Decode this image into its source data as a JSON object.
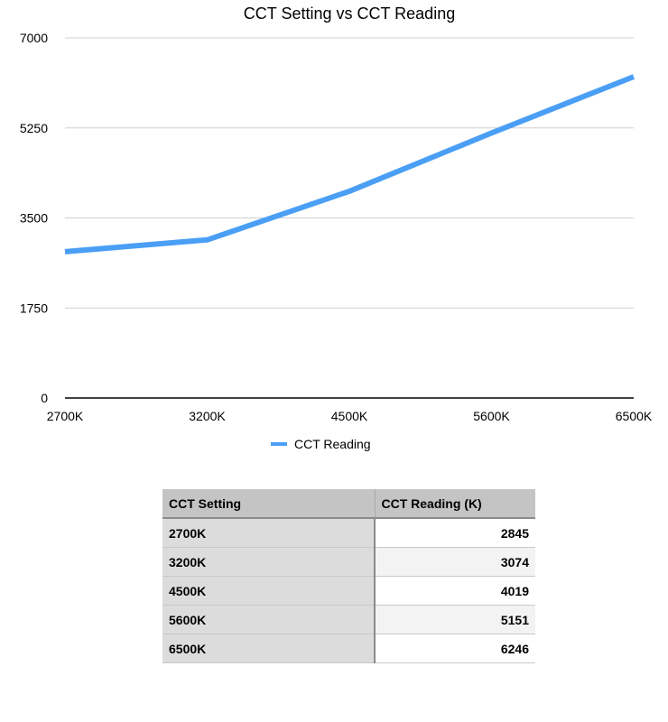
{
  "chart_data": {
    "type": "line",
    "title": "CCT Setting vs CCT Reading",
    "xlabel": "",
    "ylabel": "",
    "categories": [
      "2700K",
      "3200K",
      "4500K",
      "5600K",
      "6500K"
    ],
    "series": [
      {
        "name": "CCT Reading",
        "values": [
          2845,
          3074,
          4019,
          5151,
          6246
        ],
        "color": "#4a9ff5"
      }
    ],
    "ylim": [
      0,
      7000
    ],
    "yticks": [
      "0",
      "1750",
      "3500",
      "5250",
      "7000"
    ],
    "grid": true,
    "legend": "bottom"
  },
  "table": {
    "headers": [
      "CCT Setting",
      "CCT Reading (K)"
    ],
    "rows": [
      [
        "2700K",
        "2845"
      ],
      [
        "3200K",
        "3074"
      ],
      [
        "4500K",
        "4019"
      ],
      [
        "5600K",
        "5151"
      ],
      [
        "6500K",
        "6246"
      ]
    ]
  }
}
